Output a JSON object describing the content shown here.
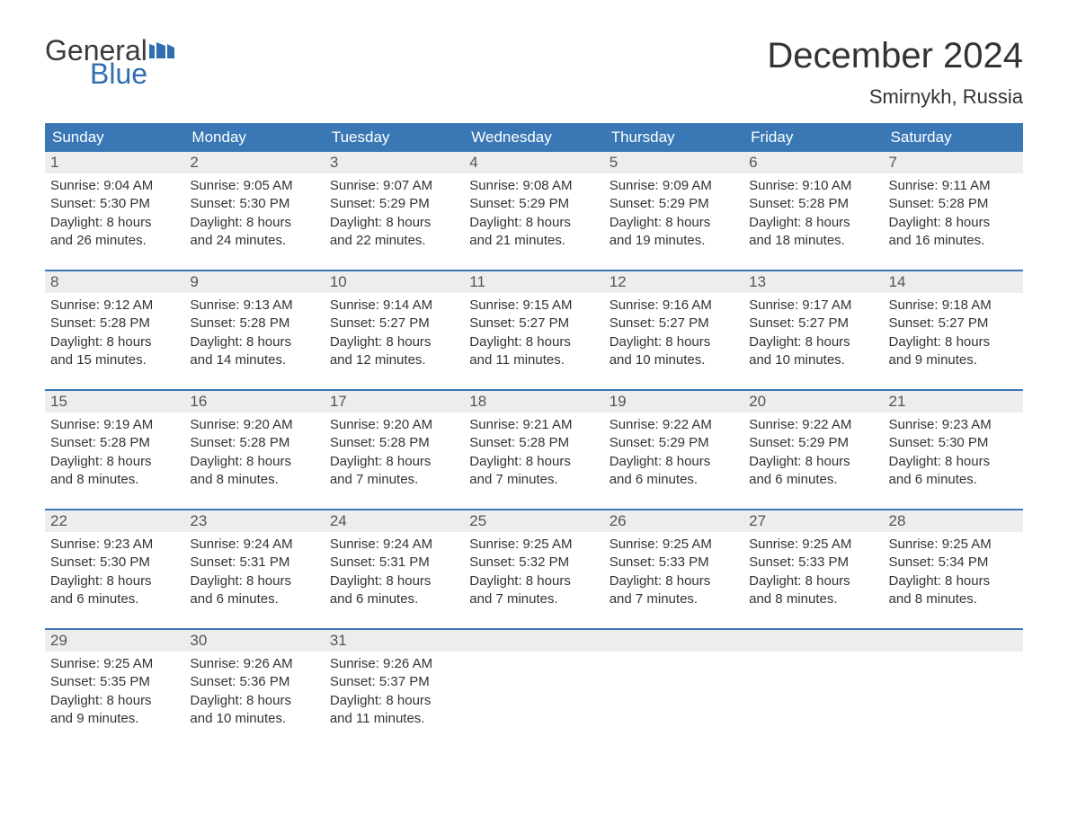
{
  "logo": {
    "word1": "General",
    "word2": "Blue",
    "word1_color": "#3b3b3b",
    "word2_color": "#2f6fb0",
    "flag_color": "#2f6fb0"
  },
  "title": "December 2024",
  "location": "Smirnykh, Russia",
  "colors": {
    "header_bg": "#3a78b5",
    "header_text": "#ffffff",
    "daynum_bg": "#ededed",
    "daynum_text": "#555555",
    "body_text": "#333333",
    "week_border": "#3a78b5",
    "page_bg": "#ffffff"
  },
  "fonts": {
    "title_size_pt": 30,
    "location_size_pt": 17,
    "header_size_pt": 13,
    "daynum_size_pt": 13,
    "body_size_pt": 11
  },
  "day_headers": [
    "Sunday",
    "Monday",
    "Tuesday",
    "Wednesday",
    "Thursday",
    "Friday",
    "Saturday"
  ],
  "weeks": [
    [
      {
        "n": "1",
        "sunrise": "Sunrise: 9:04 AM",
        "sunset": "Sunset: 5:30 PM",
        "d1": "Daylight: 8 hours",
        "d2": "and 26 minutes."
      },
      {
        "n": "2",
        "sunrise": "Sunrise: 9:05 AM",
        "sunset": "Sunset: 5:30 PM",
        "d1": "Daylight: 8 hours",
        "d2": "and 24 minutes."
      },
      {
        "n": "3",
        "sunrise": "Sunrise: 9:07 AM",
        "sunset": "Sunset: 5:29 PM",
        "d1": "Daylight: 8 hours",
        "d2": "and 22 minutes."
      },
      {
        "n": "4",
        "sunrise": "Sunrise: 9:08 AM",
        "sunset": "Sunset: 5:29 PM",
        "d1": "Daylight: 8 hours",
        "d2": "and 21 minutes."
      },
      {
        "n": "5",
        "sunrise": "Sunrise: 9:09 AM",
        "sunset": "Sunset: 5:29 PM",
        "d1": "Daylight: 8 hours",
        "d2": "and 19 minutes."
      },
      {
        "n": "6",
        "sunrise": "Sunrise: 9:10 AM",
        "sunset": "Sunset: 5:28 PM",
        "d1": "Daylight: 8 hours",
        "d2": "and 18 minutes."
      },
      {
        "n": "7",
        "sunrise": "Sunrise: 9:11 AM",
        "sunset": "Sunset: 5:28 PM",
        "d1": "Daylight: 8 hours",
        "d2": "and 16 minutes."
      }
    ],
    [
      {
        "n": "8",
        "sunrise": "Sunrise: 9:12 AM",
        "sunset": "Sunset: 5:28 PM",
        "d1": "Daylight: 8 hours",
        "d2": "and 15 minutes."
      },
      {
        "n": "9",
        "sunrise": "Sunrise: 9:13 AM",
        "sunset": "Sunset: 5:28 PM",
        "d1": "Daylight: 8 hours",
        "d2": "and 14 minutes."
      },
      {
        "n": "10",
        "sunrise": "Sunrise: 9:14 AM",
        "sunset": "Sunset: 5:27 PM",
        "d1": "Daylight: 8 hours",
        "d2": "and 12 minutes."
      },
      {
        "n": "11",
        "sunrise": "Sunrise: 9:15 AM",
        "sunset": "Sunset: 5:27 PM",
        "d1": "Daylight: 8 hours",
        "d2": "and 11 minutes."
      },
      {
        "n": "12",
        "sunrise": "Sunrise: 9:16 AM",
        "sunset": "Sunset: 5:27 PM",
        "d1": "Daylight: 8 hours",
        "d2": "and 10 minutes."
      },
      {
        "n": "13",
        "sunrise": "Sunrise: 9:17 AM",
        "sunset": "Sunset: 5:27 PM",
        "d1": "Daylight: 8 hours",
        "d2": "and 10 minutes."
      },
      {
        "n": "14",
        "sunrise": "Sunrise: 9:18 AM",
        "sunset": "Sunset: 5:27 PM",
        "d1": "Daylight: 8 hours",
        "d2": "and 9 minutes."
      }
    ],
    [
      {
        "n": "15",
        "sunrise": "Sunrise: 9:19 AM",
        "sunset": "Sunset: 5:28 PM",
        "d1": "Daylight: 8 hours",
        "d2": "and 8 minutes."
      },
      {
        "n": "16",
        "sunrise": "Sunrise: 9:20 AM",
        "sunset": "Sunset: 5:28 PM",
        "d1": "Daylight: 8 hours",
        "d2": "and 8 minutes."
      },
      {
        "n": "17",
        "sunrise": "Sunrise: 9:20 AM",
        "sunset": "Sunset: 5:28 PM",
        "d1": "Daylight: 8 hours",
        "d2": "and 7 minutes."
      },
      {
        "n": "18",
        "sunrise": "Sunrise: 9:21 AM",
        "sunset": "Sunset: 5:28 PM",
        "d1": "Daylight: 8 hours",
        "d2": "and 7 minutes."
      },
      {
        "n": "19",
        "sunrise": "Sunrise: 9:22 AM",
        "sunset": "Sunset: 5:29 PM",
        "d1": "Daylight: 8 hours",
        "d2": "and 6 minutes."
      },
      {
        "n": "20",
        "sunrise": "Sunrise: 9:22 AM",
        "sunset": "Sunset: 5:29 PM",
        "d1": "Daylight: 8 hours",
        "d2": "and 6 minutes."
      },
      {
        "n": "21",
        "sunrise": "Sunrise: 9:23 AM",
        "sunset": "Sunset: 5:30 PM",
        "d1": "Daylight: 8 hours",
        "d2": "and 6 minutes."
      }
    ],
    [
      {
        "n": "22",
        "sunrise": "Sunrise: 9:23 AM",
        "sunset": "Sunset: 5:30 PM",
        "d1": "Daylight: 8 hours",
        "d2": "and 6 minutes."
      },
      {
        "n": "23",
        "sunrise": "Sunrise: 9:24 AM",
        "sunset": "Sunset: 5:31 PM",
        "d1": "Daylight: 8 hours",
        "d2": "and 6 minutes."
      },
      {
        "n": "24",
        "sunrise": "Sunrise: 9:24 AM",
        "sunset": "Sunset: 5:31 PM",
        "d1": "Daylight: 8 hours",
        "d2": "and 6 minutes."
      },
      {
        "n": "25",
        "sunrise": "Sunrise: 9:25 AM",
        "sunset": "Sunset: 5:32 PM",
        "d1": "Daylight: 8 hours",
        "d2": "and 7 minutes."
      },
      {
        "n": "26",
        "sunrise": "Sunrise: 9:25 AM",
        "sunset": "Sunset: 5:33 PM",
        "d1": "Daylight: 8 hours",
        "d2": "and 7 minutes."
      },
      {
        "n": "27",
        "sunrise": "Sunrise: 9:25 AM",
        "sunset": "Sunset: 5:33 PM",
        "d1": "Daylight: 8 hours",
        "d2": "and 8 minutes."
      },
      {
        "n": "28",
        "sunrise": "Sunrise: 9:25 AM",
        "sunset": "Sunset: 5:34 PM",
        "d1": "Daylight: 8 hours",
        "d2": "and 8 minutes."
      }
    ],
    [
      {
        "n": "29",
        "sunrise": "Sunrise: 9:25 AM",
        "sunset": "Sunset: 5:35 PM",
        "d1": "Daylight: 8 hours",
        "d2": "and 9 minutes."
      },
      {
        "n": "30",
        "sunrise": "Sunrise: 9:26 AM",
        "sunset": "Sunset: 5:36 PM",
        "d1": "Daylight: 8 hours",
        "d2": "and 10 minutes."
      },
      {
        "n": "31",
        "sunrise": "Sunrise: 9:26 AM",
        "sunset": "Sunset: 5:37 PM",
        "d1": "Daylight: 8 hours",
        "d2": "and 11 minutes."
      },
      {
        "empty": true
      },
      {
        "empty": true
      },
      {
        "empty": true
      },
      {
        "empty": true
      }
    ]
  ]
}
